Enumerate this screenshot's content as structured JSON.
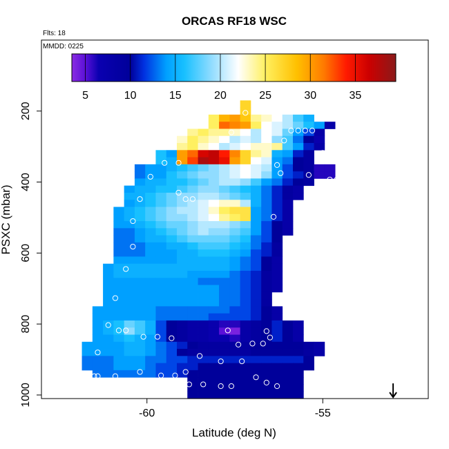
{
  "chart_data": {
    "type": "heatmap",
    "title": "ORCAS RF18 WSC",
    "flights_label": "Flts: 18",
    "date_label": "MMDD: 0225",
    "xlabel": "Latitude (deg N)",
    "ylabel": "PSXC (mbar)",
    "xlim": [
      -63.0,
      -52.0
    ],
    "ylim": [
      1010,
      0
    ],
    "x_ticks": [
      -60,
      -55
    ],
    "x_tick_labels": [
      "-60",
      "-55"
    ],
    "y_ticks": [
      200,
      400,
      600,
      800,
      1000
    ],
    "y_tick_labels": [
      "200",
      "400",
      "600",
      "800",
      "1000"
    ],
    "colorbar": {
      "range": [
        3.5,
        39.5
      ],
      "ticks": [
        5,
        10,
        15,
        20,
        25,
        30,
        35
      ],
      "tick_labels": [
        "5",
        "10",
        "15",
        "20",
        "25",
        "30",
        "35"
      ],
      "stops": [
        {
          "v": 3.5,
          "c": "#8a2be2"
        },
        {
          "v": 5,
          "c": "#5a10d8"
        },
        {
          "v": 6.5,
          "c": "#0a00b0"
        },
        {
          "v": 10,
          "c": "#00009a"
        },
        {
          "v": 11.5,
          "c": "#0030e0"
        },
        {
          "v": 14,
          "c": "#00a0ff"
        },
        {
          "v": 16,
          "c": "#18c0ff"
        },
        {
          "v": 19,
          "c": "#90dcff"
        },
        {
          "v": 22,
          "c": "#ffffff"
        },
        {
          "v": 25,
          "c": "#fff060"
        },
        {
          "v": 28.5,
          "c": "#ffc000"
        },
        {
          "v": 31.5,
          "c": "#ff7a00"
        },
        {
          "v": 34,
          "c": "#ff1a00"
        },
        {
          "v": 36.5,
          "c": "#cc0000"
        },
        {
          "v": 39.5,
          "c": "#8b1a1a"
        }
      ]
    },
    "arrow_latitude": -53.0,
    "cell_size": {
      "lat": 0.3,
      "p": 20
    },
    "grid": [
      {
        "p": 180,
        "lat0": -57.2,
        "values": [
          27
        ]
      },
      {
        "p": 200,
        "lat0": -57.2,
        "values": [
          27
        ]
      },
      {
        "p": 220,
        "lat0": -58.1,
        "values": [
          25,
          29,
          30,
          28,
          24,
          23,
          22,
          20,
          17,
          15
        ]
      },
      {
        "p": 240,
        "lat0": -58.1,
        "values": [
          25,
          32,
          31,
          30,
          25,
          22,
          21,
          20,
          18,
          16,
          14,
          8
        ]
      },
      {
        "p": 260,
        "lat0": -58.7,
        "values": [
          24,
          25,
          24,
          24,
          23,
          22,
          20,
          22,
          21,
          18,
          14,
          12,
          8
        ]
      },
      {
        "p": 280,
        "lat0": -59.0,
        "values": [
          23,
          25,
          24,
          23,
          22,
          20,
          21,
          20,
          22,
          19,
          17,
          13,
          10,
          7
        ]
      },
      {
        "p": 300,
        "lat0": -59.0,
        "values": [
          24,
          25,
          23,
          22,
          20,
          21,
          22,
          23,
          23,
          24,
          17,
          14,
          11,
          8
        ]
      },
      {
        "p": 320,
        "lat0": -59.6,
        "values": [
          16,
          14,
          30,
          32,
          36,
          37,
          34,
          31,
          27,
          24,
          23,
          15,
          14,
          11,
          9
        ]
      },
      {
        "p": 340,
        "lat0": -59.6,
        "values": [
          16,
          15,
          30,
          33,
          38,
          37,
          35,
          30,
          27,
          22,
          21,
          14,
          13,
          10,
          9
        ]
      },
      {
        "p": 360,
        "lat0": -60.2,
        "values": [
          13,
          14,
          14,
          15,
          16,
          17,
          18,
          19,
          20,
          21,
          22,
          21,
          20,
          14,
          12,
          10,
          9,
          6,
          6
        ]
      },
      {
        "p": 380,
        "lat0": -60.2,
        "values": [
          13,
          14,
          14,
          16,
          17,
          18,
          19,
          19,
          20,
          21,
          22,
          21,
          19,
          14,
          12,
          11,
          9,
          6,
          6
        ]
      },
      {
        "p": 400,
        "lat0": -60.2,
        "values": [
          14,
          15,
          15,
          16,
          16,
          17,
          18,
          19,
          20,
          20,
          19,
          17,
          14,
          13,
          11,
          10,
          9
        ]
      },
      {
        "p": 420,
        "lat0": -60.5,
        "values": [
          14,
          15,
          15,
          16,
          16,
          17,
          18,
          19,
          19,
          18,
          17,
          16,
          15,
          13,
          11,
          9,
          8
        ]
      },
      {
        "p": 440,
        "lat0": -60.5,
        "values": [
          15,
          15,
          16,
          17,
          18,
          19,
          19,
          20,
          20,
          19,
          18,
          17,
          15,
          13,
          11,
          9,
          8
        ]
      },
      {
        "p": 460,
        "lat0": -60.5,
        "values": [
          14,
          15,
          16,
          17,
          18,
          19,
          20,
          21,
          22,
          23,
          23,
          20,
          15,
          13,
          11,
          8
        ]
      },
      {
        "p": 480,
        "lat0": -60.8,
        "values": [
          14,
          15,
          16,
          17,
          18,
          19,
          20,
          20,
          21,
          23,
          25,
          26,
          26,
          14,
          13,
          11,
          8
        ]
      },
      {
        "p": 500,
        "lat0": -60.8,
        "values": [
          14,
          15,
          16,
          17,
          18,
          19,
          19,
          20,
          21,
          22,
          24,
          25,
          26,
          14,
          13,
          11,
          8
        ]
      },
      {
        "p": 520,
        "lat0": -60.8,
        "values": [
          14,
          14,
          15,
          16,
          17,
          18,
          18,
          19,
          20,
          20,
          20,
          19,
          18,
          14,
          12,
          10,
          8
        ]
      },
      {
        "p": 540,
        "lat0": -60.8,
        "values": [
          13,
          13,
          14,
          15,
          16,
          17,
          18,
          19,
          20,
          19,
          19,
          18,
          17,
          14,
          12,
          10,
          8
        ]
      },
      {
        "p": 560,
        "lat0": -60.8,
        "values": [
          13,
          13,
          14,
          15,
          15,
          16,
          17,
          18,
          18,
          18,
          18,
          17,
          16,
          13,
          12,
          10
        ]
      },
      {
        "p": 580,
        "lat0": -60.8,
        "values": [
          13,
          13,
          13,
          14,
          14,
          15,
          15,
          16,
          17,
          17,
          17,
          16,
          15,
          13,
          11,
          9
        ]
      },
      {
        "p": 600,
        "lat0": -60.8,
        "values": [
          13,
          13,
          13,
          14,
          14,
          14,
          15,
          15,
          16,
          16,
          16,
          15,
          14,
          12,
          11,
          9
        ]
      },
      {
        "p": 620,
        "lat0": -60.8,
        "values": [
          14,
          14,
          14,
          14,
          14,
          14,
          15,
          15,
          15,
          15,
          15,
          14,
          13,
          12,
          10,
          8
        ]
      },
      {
        "p": 640,
        "lat0": -61.1,
        "values": [
          14,
          15,
          15,
          15,
          15,
          15,
          15,
          15,
          15,
          15,
          15,
          15,
          14,
          13,
          12,
          10,
          8
        ]
      },
      {
        "p": 660,
        "lat0": -61.1,
        "values": [
          14,
          15,
          15,
          15,
          15,
          15,
          15,
          15,
          14,
          14,
          14,
          14,
          13,
          12,
          11,
          9,
          8
        ]
      },
      {
        "p": 680,
        "lat0": -61.1,
        "values": [
          14,
          14,
          14,
          14,
          14,
          14,
          14,
          14,
          14,
          13,
          13,
          13,
          13,
          12,
          11,
          9,
          8
        ]
      },
      {
        "p": 700,
        "lat0": -61.1,
        "values": [
          14,
          14,
          14,
          14,
          14,
          14,
          14,
          14,
          14,
          14,
          14,
          13,
          13,
          12,
          11,
          9,
          8
        ]
      },
      {
        "p": 720,
        "lat0": -61.1,
        "values": [
          14,
          14,
          14,
          14,
          14,
          14,
          14,
          14,
          14,
          14,
          14,
          13,
          13,
          12,
          11,
          9
        ]
      },
      {
        "p": 740,
        "lat0": -61.1,
        "values": [
          14,
          14,
          14,
          14,
          14,
          14,
          14,
          14,
          14,
          14,
          14,
          13,
          13,
          12,
          11,
          9
        ]
      },
      {
        "p": 760,
        "lat0": -61.4,
        "values": [
          14,
          14,
          14,
          14,
          14,
          14,
          13,
          13,
          13,
          13,
          13,
          13,
          13,
          12,
          12,
          11,
          10,
          8
        ]
      },
      {
        "p": 780,
        "lat0": -61.4,
        "values": [
          14,
          14,
          14,
          14,
          14,
          14,
          13,
          13,
          13,
          13,
          13,
          12,
          12,
          12,
          12,
          11,
          10,
          8
        ]
      },
      {
        "p": 800,
        "lat0": -61.4,
        "values": [
          14,
          15,
          16,
          18,
          17,
          15,
          12,
          10,
          9,
          8,
          8,
          7,
          6,
          6,
          8,
          9,
          10,
          11,
          10,
          8
        ]
      },
      {
        "p": 820,
        "lat0": -61.4,
        "values": [
          14,
          15,
          16,
          19,
          17,
          15,
          12,
          10,
          9,
          8,
          8,
          7,
          5,
          4,
          8,
          9,
          10,
          11,
          10,
          8
        ]
      },
      {
        "p": 840,
        "lat0": -61.4,
        "values": [
          14,
          14,
          15,
          16,
          15,
          14,
          12,
          10,
          9,
          8,
          8,
          7,
          7,
          6,
          8,
          9,
          10,
          11,
          10,
          8
        ]
      },
      {
        "p": 860,
        "lat0": -61.7,
        "values": [
          14,
          14,
          14,
          14,
          15,
          15,
          14,
          13,
          12,
          11,
          10,
          9,
          9,
          9,
          9,
          9,
          10,
          10,
          10,
          10,
          10,
          9,
          8
        ]
      },
      {
        "p": 880,
        "lat0": -61.7,
        "values": [
          14,
          14,
          14,
          14,
          15,
          15,
          14,
          13,
          12,
          10,
          9,
          9,
          9,
          9,
          9,
          9,
          10,
          10,
          10,
          10,
          10,
          9,
          8
        ]
      },
      {
        "p": 900,
        "lat0": -61.7,
        "values": [
          13,
          13,
          13,
          14,
          14,
          14,
          13,
          13,
          12,
          12,
          11,
          11,
          11,
          11,
          11,
          11,
          11,
          11,
          11,
          11,
          11,
          10
        ]
      },
      {
        "p": 920,
        "lat0": -61.7,
        "values": [
          13,
          13,
          13,
          14,
          14,
          14,
          13,
          12,
          12,
          11,
          11,
          10,
          10,
          10,
          10,
          10,
          10,
          10,
          10,
          10,
          10,
          10
        ]
      },
      {
        "p": 940,
        "lat0": -61.4,
        "values": [
          13,
          13,
          13,
          13,
          13,
          13,
          12,
          12,
          11,
          10,
          10,
          10,
          10,
          10,
          10,
          10,
          10,
          10,
          10,
          10
        ]
      },
      {
        "p": 960,
        "lat0": -58.7,
        "values": [
          10,
          10,
          10,
          10,
          10,
          10,
          10,
          10,
          10,
          10,
          10
        ]
      },
      {
        "p": 980,
        "lat0": -58.7,
        "values": [
          10,
          10,
          10,
          10,
          10,
          10,
          10,
          10,
          10,
          10,
          10
        ]
      },
      {
        "p": 1000,
        "lat0": -58.7,
        "values": [
          10,
          10,
          10,
          10,
          10,
          10,
          10,
          10,
          10,
          10,
          10
        ]
      }
    ],
    "points": [
      {
        "lat": -57.2,
        "p": 205
      },
      {
        "lat": -57.6,
        "p": 260
      },
      {
        "lat": -56.1,
        "p": 283
      },
      {
        "lat": -55.9,
        "p": 255
      },
      {
        "lat": -55.7,
        "p": 255
      },
      {
        "lat": -55.5,
        "p": 255
      },
      {
        "lat": -55.3,
        "p": 255
      },
      {
        "lat": -55.0,
        "p": 318
      },
      {
        "lat": -56.3,
        "p": 352
      },
      {
        "lat": -59.5,
        "p": 346
      },
      {
        "lat": -59.1,
        "p": 346
      },
      {
        "lat": -56.2,
        "p": 375
      },
      {
        "lat": -55.4,
        "p": 380
      },
      {
        "lat": -54.8,
        "p": 393
      },
      {
        "lat": -54.6,
        "p": 393
      },
      {
        "lat": -54.2,
        "p": 393
      },
      {
        "lat": -59.9,
        "p": 385
      },
      {
        "lat": -59.1,
        "p": 430
      },
      {
        "lat": -58.9,
        "p": 448
      },
      {
        "lat": -58.7,
        "p": 448
      },
      {
        "lat": -60.2,
        "p": 448
      },
      {
        "lat": -60.4,
        "p": 510
      },
      {
        "lat": -56.4,
        "p": 498
      },
      {
        "lat": -60.4,
        "p": 582
      },
      {
        "lat": -60.6,
        "p": 645
      },
      {
        "lat": -56.0,
        "p": 640
      },
      {
        "lat": -60.9,
        "p": 727
      },
      {
        "lat": -61.1,
        "p": 803
      },
      {
        "lat": -60.8,
        "p": 818
      },
      {
        "lat": -60.6,
        "p": 818
      },
      {
        "lat": -60.1,
        "p": 836
      },
      {
        "lat": -59.7,
        "p": 836
      },
      {
        "lat": -59.3,
        "p": 840
      },
      {
        "lat": -57.7,
        "p": 818
      },
      {
        "lat": -56.6,
        "p": 820
      },
      {
        "lat": -56.5,
        "p": 838
      },
      {
        "lat": -57.4,
        "p": 858
      },
      {
        "lat": -57.0,
        "p": 855
      },
      {
        "lat": -56.7,
        "p": 855
      },
      {
        "lat": -58.5,
        "p": 890
      },
      {
        "lat": -57.9,
        "p": 905
      },
      {
        "lat": -57.3,
        "p": 905
      },
      {
        "lat": -61.4,
        "p": 880
      },
      {
        "lat": -61.7,
        "p": 947
      },
      {
        "lat": -61.5,
        "p": 947
      },
      {
        "lat": -61.4,
        "p": 947
      },
      {
        "lat": -60.9,
        "p": 947
      },
      {
        "lat": -60.2,
        "p": 935
      },
      {
        "lat": -59.6,
        "p": 945
      },
      {
        "lat": -59.2,
        "p": 945
      },
      {
        "lat": -58.9,
        "p": 935
      },
      {
        "lat": -58.8,
        "p": 970
      },
      {
        "lat": -58.4,
        "p": 970
      },
      {
        "lat": -57.9,
        "p": 975
      },
      {
        "lat": -57.6,
        "p": 975
      },
      {
        "lat": -56.9,
        "p": 950
      },
      {
        "lat": -56.6,
        "p": 965
      },
      {
        "lat": -56.3,
        "p": 975
      }
    ]
  }
}
